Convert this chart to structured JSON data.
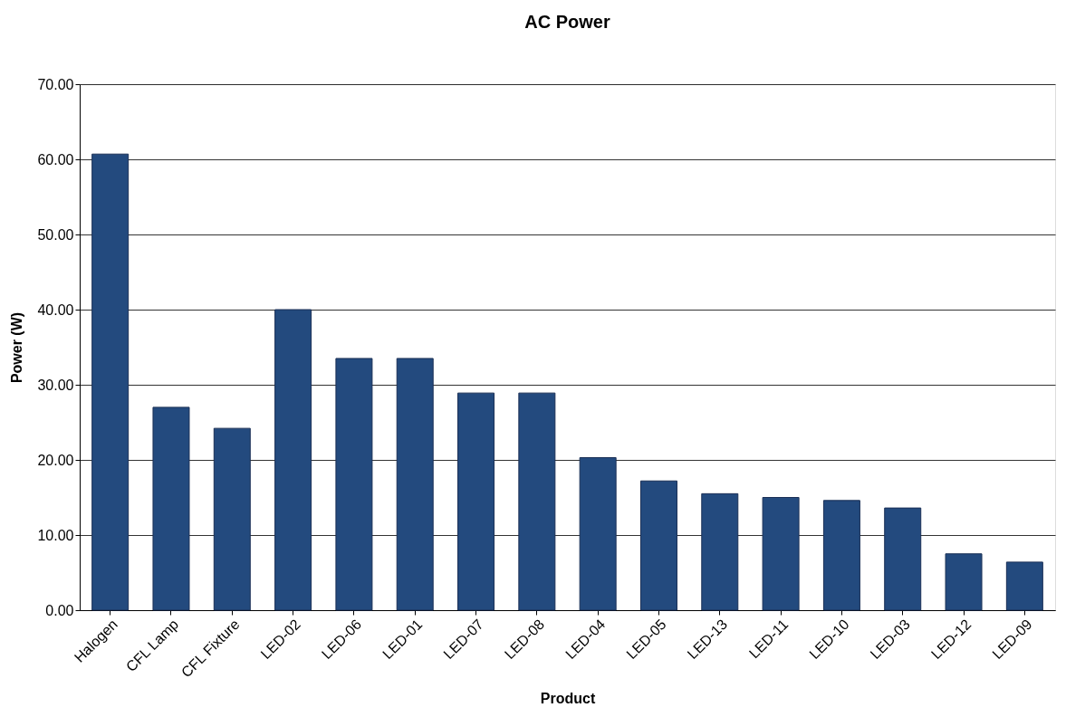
{
  "chart_data": {
    "type": "bar",
    "title": "AC Power",
    "xlabel": "Product",
    "ylabel": "Power (W)",
    "categories": [
      "Halogen",
      "CFL Lamp",
      "CFL Fixture",
      "LED-02",
      "LED-06",
      "LED-01",
      "LED-07",
      "LED-08",
      "LED-04",
      "LED-05",
      "LED-13",
      "LED-11",
      "LED-10",
      "LED-03",
      "LED-12",
      "LED-09"
    ],
    "values": [
      60.7,
      27.0,
      24.2,
      40.0,
      33.5,
      33.5,
      28.9,
      28.9,
      20.3,
      17.2,
      15.5,
      15.0,
      14.6,
      13.6,
      7.5,
      6.4
    ],
    "color": "#234a7e",
    "ylim": [
      0,
      70
    ],
    "yticks": [
      {
        "value": 0,
        "label": "0.00"
      },
      {
        "value": 10,
        "label": "10.00"
      },
      {
        "value": 20,
        "label": "20.00"
      },
      {
        "value": 30,
        "label": "30.00"
      },
      {
        "value": 40,
        "label": "40.00"
      },
      {
        "value": 50,
        "label": "50.00"
      },
      {
        "value": 60,
        "label": "60.00"
      },
      {
        "value": 70,
        "label": "70.00"
      }
    ],
    "grid": "y"
  }
}
